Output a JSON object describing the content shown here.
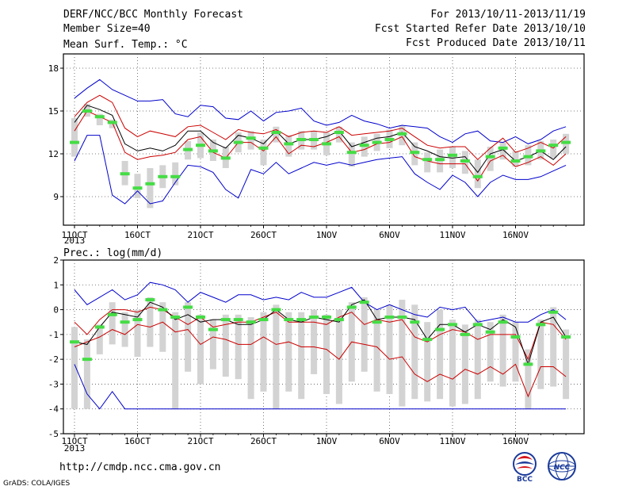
{
  "header": {
    "title": "DERF/NCC/BCC Monthly Forecast",
    "member_size": "Member Size=40",
    "forecast_period": "For 2013/10/11-2013/11/19",
    "started_refer_date": "Fcst Started Refer Date 2013/10/10",
    "produced_date": "Fcst Produced Date 2013/10/11"
  },
  "footer": {
    "url": "http://cmdp.ncc.cma.gov.cn",
    "credit": "GrADS: COLA/IGES",
    "logos": [
      "BCC",
      "NCC"
    ]
  },
  "colors": {
    "ensemble_bar": "#d3d3d3",
    "ensemble_mean": "#44dd44",
    "extreme_line": "#0000cc",
    "spread_line": "#cc0000",
    "median_line": "#000000",
    "grid": "#555555"
  },
  "chart_data": [
    {
      "type": "line",
      "title": "Mean Surf. Temp.: °C",
      "xlabel": "",
      "ylabel": "",
      "x_ticks": [
        "11OCT",
        "16OCT",
        "21OCT",
        "26OCT",
        "1NOV",
        "6NOV",
        "11NOV",
        "16NOV"
      ],
      "x_year_label": "2013",
      "y_ticks": [
        "9",
        "12",
        "15",
        "18"
      ],
      "ylim": [
        7,
        19
      ],
      "days": 40,
      "grid": true,
      "series": [
        {
          "key": "max",
          "values": [
            15.9,
            16.6,
            17.2,
            16.5,
            16.1,
            15.7,
            15.7,
            15.8,
            14.8,
            14.6,
            15.4,
            15.3,
            14.5,
            14.4,
            15.0,
            14.3,
            14.9,
            15.0,
            15.2,
            14.3,
            14.0,
            14.2,
            14.7,
            14.3,
            14.1,
            13.8,
            14.0,
            13.9,
            13.8,
            13.2,
            12.8,
            13.4,
            13.6,
            12.9,
            12.8,
            13.2,
            12.7,
            13.0,
            13.6,
            13.9
          ]
        },
        {
          "key": "upper",
          "values": [
            14.6,
            15.6,
            16.1,
            15.6,
            13.8,
            13.2,
            13.6,
            13.4,
            13.2,
            13.9,
            14.0,
            13.5,
            13.0,
            13.7,
            13.5,
            13.4,
            13.7,
            13.2,
            13.5,
            13.6,
            13.5,
            13.9,
            13.3,
            13.4,
            13.5,
            13.6,
            13.8,
            13.2,
            12.6,
            12.4,
            12.5,
            12.5,
            11.6,
            12.4,
            13.1,
            12.1,
            12.4,
            12.8,
            12.4,
            13.2
          ]
        },
        {
          "key": "median",
          "values": [
            14.2,
            15.4,
            15.1,
            14.7,
            12.7,
            12.2,
            12.4,
            12.2,
            12.6,
            13.6,
            13.6,
            12.8,
            12.4,
            13.3,
            13.1,
            12.7,
            13.6,
            12.7,
            13.0,
            13.0,
            13.2,
            13.6,
            12.5,
            12.8,
            13.1,
            13.2,
            13.5,
            12.5,
            12.2,
            11.8,
            11.7,
            11.8,
            10.7,
            12.0,
            12.3,
            11.5,
            11.8,
            12.2,
            11.6,
            12.5
          ]
        },
        {
          "key": "lower",
          "values": [
            13.6,
            15.0,
            14.6,
            14.2,
            12.1,
            11.6,
            11.8,
            11.9,
            12.1,
            13.0,
            13.2,
            12.1,
            11.7,
            12.8,
            12.8,
            12.2,
            13.2,
            12.0,
            12.6,
            12.5,
            12.8,
            13.2,
            12.1,
            12.3,
            12.7,
            12.8,
            13.2,
            11.8,
            11.5,
            11.3,
            11.3,
            11.3,
            10.1,
            11.5,
            11.9,
            11.1,
            11.4,
            11.8,
            11.2,
            12.0
          ]
        },
        {
          "key": "min",
          "values": [
            11.5,
            13.3,
            13.3,
            9.1,
            8.5,
            9.4,
            8.5,
            8.7,
            10.0,
            11.2,
            11.1,
            10.7,
            9.5,
            8.9,
            10.9,
            10.6,
            11.4,
            10.6,
            11.0,
            11.4,
            11.2,
            11.4,
            11.2,
            11.4,
            11.6,
            11.7,
            11.8,
            10.6,
            10.0,
            9.5,
            10.5,
            10.0,
            9.0,
            10.0,
            10.5,
            10.2,
            10.2,
            10.4,
            10.8,
            11.2
          ]
        },
        {
          "key": "mean",
          "values": [
            12.8,
            15.0,
            14.6,
            14.2,
            10.6,
            9.6,
            9.9,
            10.4,
            10.4,
            12.3,
            12.6,
            12.2,
            11.7,
            12.8,
            13.1,
            12.4,
            13.5,
            12.7,
            13.0,
            13.0,
            12.7,
            13.5,
            12.1,
            12.6,
            12.8,
            13.0,
            13.4,
            12.1,
            11.6,
            11.6,
            11.9,
            11.5,
            10.4,
            11.8,
            12.4,
            11.5,
            11.8,
            12.2,
            12.6,
            12.8
          ]
        },
        {
          "key": "bar_high",
          "values": [
            14.5,
            15.5,
            14.8,
            14.4,
            11.5,
            10.6,
            11.0,
            11.2,
            11.4,
            12.9,
            13.5,
            13.0,
            12.5,
            13.5,
            13.6,
            13.0,
            13.9,
            13.3,
            13.6,
            13.6,
            13.5,
            13.9,
            12.8,
            13.2,
            13.4,
            13.7,
            14.0,
            12.8,
            12.1,
            12.3,
            12.5,
            12.2,
            11.6,
            12.5,
            12.8,
            12.2,
            12.6,
            12.9,
            13.0,
            13.4
          ]
        },
        {
          "key": "bar_low",
          "values": [
            11.8,
            14.6,
            14.0,
            13.8,
            9.8,
            8.9,
            8.2,
            9.6,
            9.8,
            11.6,
            11.7,
            11.5,
            11.0,
            12.1,
            12.3,
            11.2,
            12.8,
            11.8,
            12.3,
            12.3,
            11.9,
            12.8,
            11.1,
            11.8,
            12.2,
            12.4,
            12.6,
            11.2,
            10.7,
            10.7,
            11.0,
            10.6,
            9.6,
            10.8,
            11.6,
            11.1,
            11.2,
            11.6,
            11.7,
            12.0
          ]
        }
      ]
    },
    {
      "type": "line",
      "title": "Prec.: log(mm/d)",
      "xlabel": "",
      "ylabel": "",
      "x_ticks": [
        "11OCT",
        "16OCT",
        "21OCT",
        "26OCT",
        "1NOV",
        "6NOV",
        "11NOV",
        "16NOV"
      ],
      "x_year_label": "2013",
      "y_ticks": [
        "-5",
        "-4",
        "-3",
        "-2",
        "-1",
        "0",
        "1",
        "2"
      ],
      "ylim": [
        -5,
        2
      ],
      "days": 40,
      "grid": true,
      "series": [
        {
          "key": "max",
          "values": [
            0.8,
            0.2,
            0.5,
            0.8,
            0.4,
            0.6,
            1.1,
            1.0,
            0.8,
            0.3,
            0.7,
            0.5,
            0.3,
            0.6,
            0.6,
            0.4,
            0.5,
            0.4,
            0.7,
            0.5,
            0.5,
            0.7,
            0.9,
            0.3,
            0.0,
            0.2,
            0.0,
            -0.2,
            -0.3,
            0.1,
            0.0,
            0.1,
            -0.5,
            -0.4,
            -0.3,
            -0.5,
            -0.5,
            -0.2,
            0.0,
            -0.4
          ]
        },
        {
          "key": "upper",
          "values": [
            -0.5,
            -1.0,
            -0.4,
            0.0,
            0.0,
            -0.1,
            0.1,
            0.0,
            -0.3,
            -0.6,
            -0.3,
            -0.7,
            -0.6,
            -0.5,
            -0.5,
            -0.3,
            -0.1,
            -0.5,
            -0.5,
            -0.5,
            -0.6,
            -0.3,
            -0.1,
            -0.6,
            -0.4,
            -0.5,
            -0.4,
            -1.1,
            -1.3,
            -1.0,
            -0.8,
            -0.9,
            -1.2,
            -1.0,
            -1.0,
            -1.0,
            -2.0,
            -0.5,
            -0.6,
            -1.2
          ]
        },
        {
          "key": "median",
          "values": [
            -1.3,
            -1.4,
            -0.7,
            -0.1,
            -0.2,
            -0.3,
            0.3,
            0.1,
            -0.4,
            -0.2,
            -0.5,
            -0.4,
            -0.4,
            -0.6,
            -0.6,
            -0.4,
            0.0,
            -0.4,
            -0.5,
            -0.3,
            -0.4,
            -0.5,
            0.2,
            0.4,
            -0.4,
            -0.3,
            -0.3,
            -0.4,
            -1.2,
            -0.6,
            -0.6,
            -0.9,
            -0.6,
            -0.8,
            -0.4,
            -0.7,
            -2.2,
            -0.5,
            -0.3,
            -1.1
          ]
        },
        {
          "key": "lower",
          "values": [
            -1.5,
            -1.3,
            -1.1,
            -0.8,
            -1.0,
            -0.6,
            -0.7,
            -0.5,
            -0.9,
            -0.8,
            -1.4,
            -1.1,
            -1.2,
            -1.4,
            -1.4,
            -1.1,
            -1.4,
            -1.3,
            -1.5,
            -1.5,
            -1.6,
            -2.0,
            -1.3,
            -1.4,
            -1.5,
            -2.0,
            -1.9,
            -2.6,
            -2.9,
            -2.6,
            -2.8,
            -2.4,
            -2.6,
            -2.3,
            -2.6,
            -2.2,
            -3.5,
            -2.3,
            -2.3,
            -2.7
          ]
        },
        {
          "key": "min",
          "values": [
            -2.2,
            -3.4,
            -4.0,
            -3.3,
            -4.0,
            -4.0,
            -4.0,
            -4.0,
            -4.0,
            -4.0,
            -4.0,
            -4.0,
            -4.0,
            -4.0,
            -4.0,
            -4.0,
            -4.0,
            -4.0,
            -4.0,
            -4.0,
            -4.0,
            -4.0,
            -4.0,
            -4.0,
            -4.0,
            -4.0,
            -4.0,
            -4.0,
            -4.0,
            -4.0,
            -4.0,
            -4.0,
            -4.0,
            -4.0,
            -4.0,
            -4.0,
            -4.0,
            -4.0,
            -4.0,
            -4.0
          ]
        },
        {
          "key": "mean",
          "values": [
            -1.3,
            -2.0,
            -0.7,
            -0.2,
            -0.5,
            -0.4,
            0.4,
            0.0,
            -0.3,
            0.1,
            -0.3,
            -0.8,
            -0.4,
            -0.4,
            -0.5,
            -0.4,
            0.0,
            -0.4,
            -0.4,
            -0.3,
            -0.3,
            -0.4,
            0.1,
            0.3,
            -0.5,
            -0.3,
            -0.3,
            -0.5,
            -1.2,
            -0.8,
            -0.6,
            -1.0,
            -0.6,
            -0.9,
            -0.5,
            -1.1,
            -2.2,
            -0.6,
            -0.1,
            -1.1
          ]
        },
        {
          "key": "bar_high",
          "values": [
            -0.7,
            -1.2,
            -0.6,
            0.3,
            -0.1,
            0.0,
            0.5,
            0.3,
            -0.1,
            0.3,
            -0.2,
            -0.4,
            -0.2,
            -0.2,
            -0.3,
            -0.1,
            0.2,
            -0.1,
            -0.1,
            0.0,
            -0.2,
            0.0,
            0.3,
            0.5,
            0.0,
            0.2,
            0.4,
            0.2,
            -0.5,
            0.0,
            -0.4,
            -0.6,
            -0.4,
            -0.5,
            -0.2,
            -0.5,
            -1.6,
            -0.4,
            0.1,
            -0.8
          ]
        },
        {
          "key": "bar_low",
          "values": [
            -4.0,
            -4.0,
            -1.8,
            -1.4,
            -1.5,
            -1.9,
            -1.5,
            -1.7,
            -4.0,
            -2.5,
            -3.0,
            -2.4,
            -2.7,
            -2.8,
            -3.6,
            -3.3,
            -4.0,
            -3.3,
            -3.6,
            -2.6,
            -3.4,
            -3.8,
            -2.9,
            -2.5,
            -3.3,
            -3.4,
            -3.9,
            -3.6,
            -3.7,
            -3.6,
            -3.9,
            -3.8,
            -3.6,
            -2.9,
            -3.1,
            -2.9,
            -4.0,
            -3.2,
            -3.1,
            -3.6
          ]
        }
      ]
    }
  ]
}
